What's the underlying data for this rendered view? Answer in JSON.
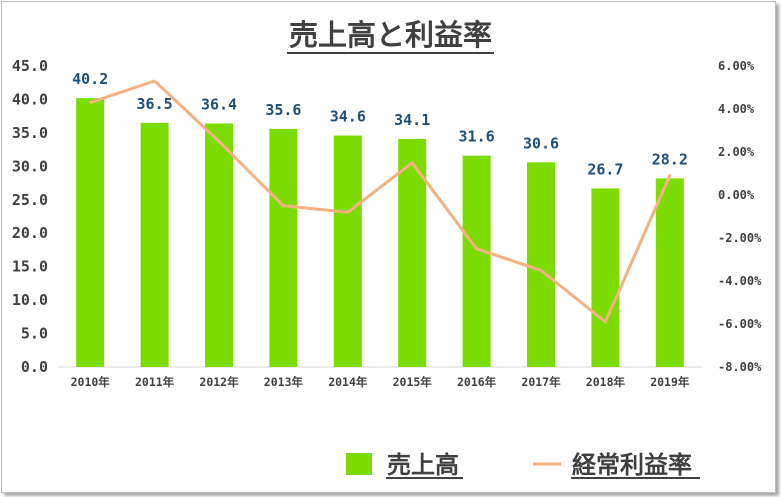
{
  "chart_data": {
    "type": "bar",
    "title": "売上高と利益率",
    "categories": [
      "2010年",
      "2011年",
      "2012年",
      "2013年",
      "2014年",
      "2015年",
      "2016年",
      "2017年",
      "2018年",
      "2019年"
    ],
    "series": [
      {
        "name": "売上高",
        "type": "bar",
        "axis": "left",
        "color": "#7cdc00",
        "values": [
          40.2,
          36.5,
          36.4,
          35.6,
          34.6,
          34.1,
          31.6,
          30.6,
          26.7,
          28.2
        ],
        "data_labels": [
          "40.2",
          "36.5",
          "36.4",
          "35.6",
          "34.6",
          "34.1",
          "31.6",
          "30.6",
          "26.7",
          "28.2"
        ]
      },
      {
        "name": "経常利益率",
        "type": "line",
        "axis": "right",
        "color": "#f4b183",
        "values": [
          4.3,
          5.3,
          2.5,
          -0.5,
          -0.8,
          1.5,
          -2.5,
          -3.5,
          -5.9,
          0.9
        ]
      }
    ],
    "y_left": {
      "ylim": [
        0,
        45
      ],
      "ticks": [
        "0.0",
        "5.0",
        "10.0",
        "15.0",
        "20.0",
        "25.0",
        "30.0",
        "35.0",
        "40.0",
        "45.0"
      ]
    },
    "y_right": {
      "ylim": [
        -8,
        6
      ],
      "ticks": [
        "-8.00%",
        "-6.00%",
        "-4.00%",
        "-2.00%",
        "0.00%",
        "2.00%",
        "4.00%",
        "6.00%"
      ]
    },
    "grid": false,
    "legend_position": "bottom-right"
  }
}
